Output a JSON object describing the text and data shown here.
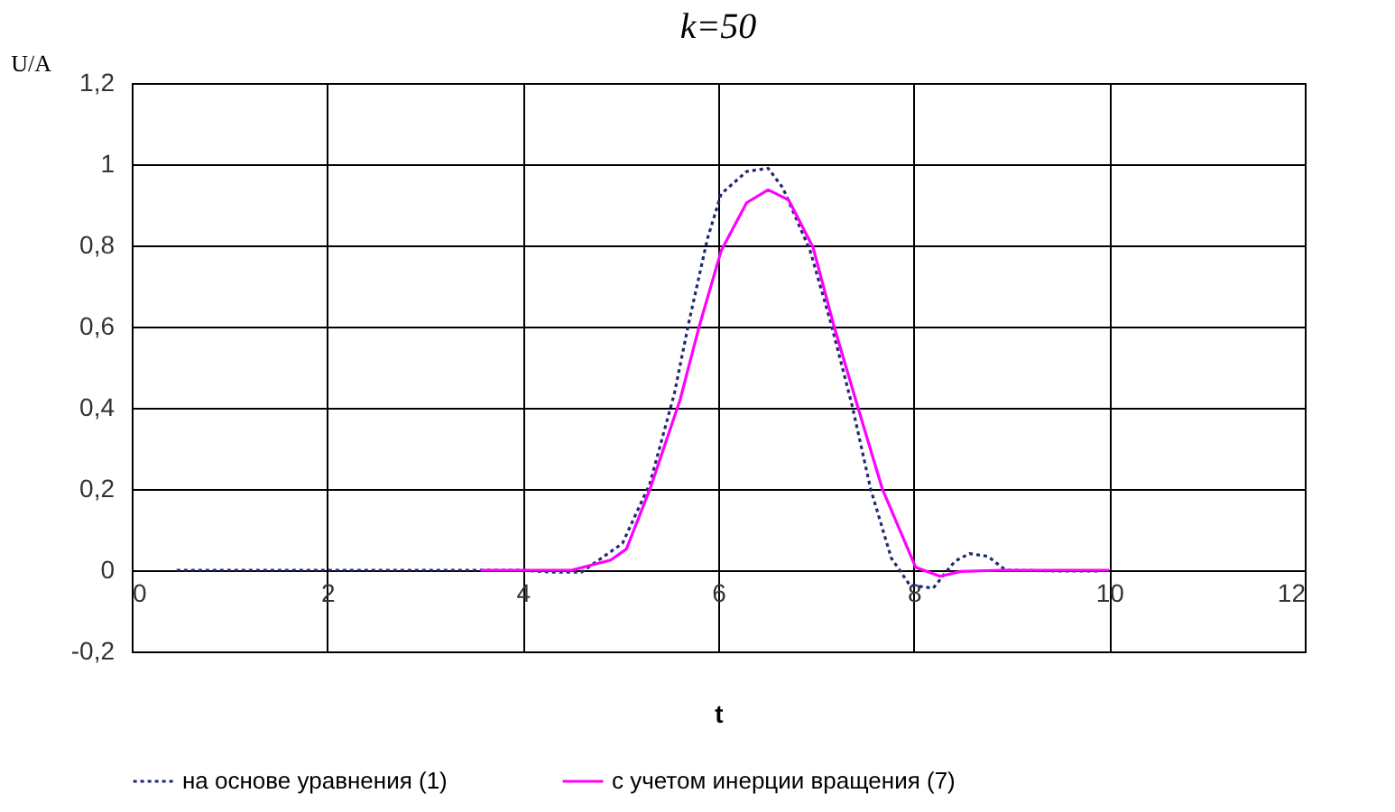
{
  "chart_data": {
    "type": "line",
    "title": "k=50",
    "xlabel": "t",
    "ylabel": "U/A",
    "xlim": [
      0,
      12
    ],
    "xticks": [
      0,
      2,
      4,
      6,
      8,
      10,
      12
    ],
    "ylim": [
      -0.2,
      1.2
    ],
    "yticks": [
      {
        "value": -0.2,
        "label": "-0,2"
      },
      0,
      {
        "value": 0.2,
        "label": "0,2"
      },
      {
        "value": 0.4,
        "label": "0,4"
      },
      {
        "value": 0.6,
        "label": "0,6"
      },
      {
        "value": 0.8,
        "label": "0,8"
      },
      1,
      {
        "value": 1.2,
        "label": "1,2"
      }
    ],
    "grid": true,
    "legend": "bottom",
    "marker": "none",
    "series": [
      {
        "name": "на основе уравнения (1)",
        "color": "#1f2a6e",
        "line_style": "dashed",
        "x": [
          0.46,
          2,
          4,
          4.3,
          4.6,
          5.02,
          5.3,
          5.55,
          5.7,
          5.89,
          6.03,
          6.29,
          6.51,
          6.66,
          6.94,
          7.15,
          7.37,
          7.56,
          7.77,
          7.96,
          8.2,
          8.42,
          8.57,
          8.76,
          8.94,
          9.5,
          9.9
        ],
        "values": [
          0,
          0,
          0,
          -0.005,
          -0.005,
          0.066,
          0.213,
          0.434,
          0.611,
          0.817,
          0.927,
          0.982,
          0.99,
          0.942,
          0.787,
          0.611,
          0.405,
          0.199,
          0.03,
          -0.037,
          -0.044,
          0.022,
          0.041,
          0.034,
          0,
          -0.002,
          -0.002
        ]
      },
      {
        "name": "с учетом инерции вращения (7)",
        "color": "#ff00ff",
        "line_style": "solid",
        "x": [
          3.57,
          4,
          4.5,
          4.9,
          5.06,
          5.3,
          5.61,
          5.8,
          6.03,
          6.29,
          6.51,
          6.72,
          6.97,
          7.19,
          7.43,
          7.68,
          8.02,
          8.27,
          8.48,
          8.9,
          9.5,
          10
        ],
        "values": [
          0,
          0,
          0,
          0.025,
          0.052,
          0.199,
          0.42,
          0.596,
          0.787,
          0.905,
          0.937,
          0.912,
          0.795,
          0.596,
          0.4,
          0.199,
          0.007,
          -0.015,
          -0.003,
          0,
          0,
          0
        ]
      }
    ]
  }
}
